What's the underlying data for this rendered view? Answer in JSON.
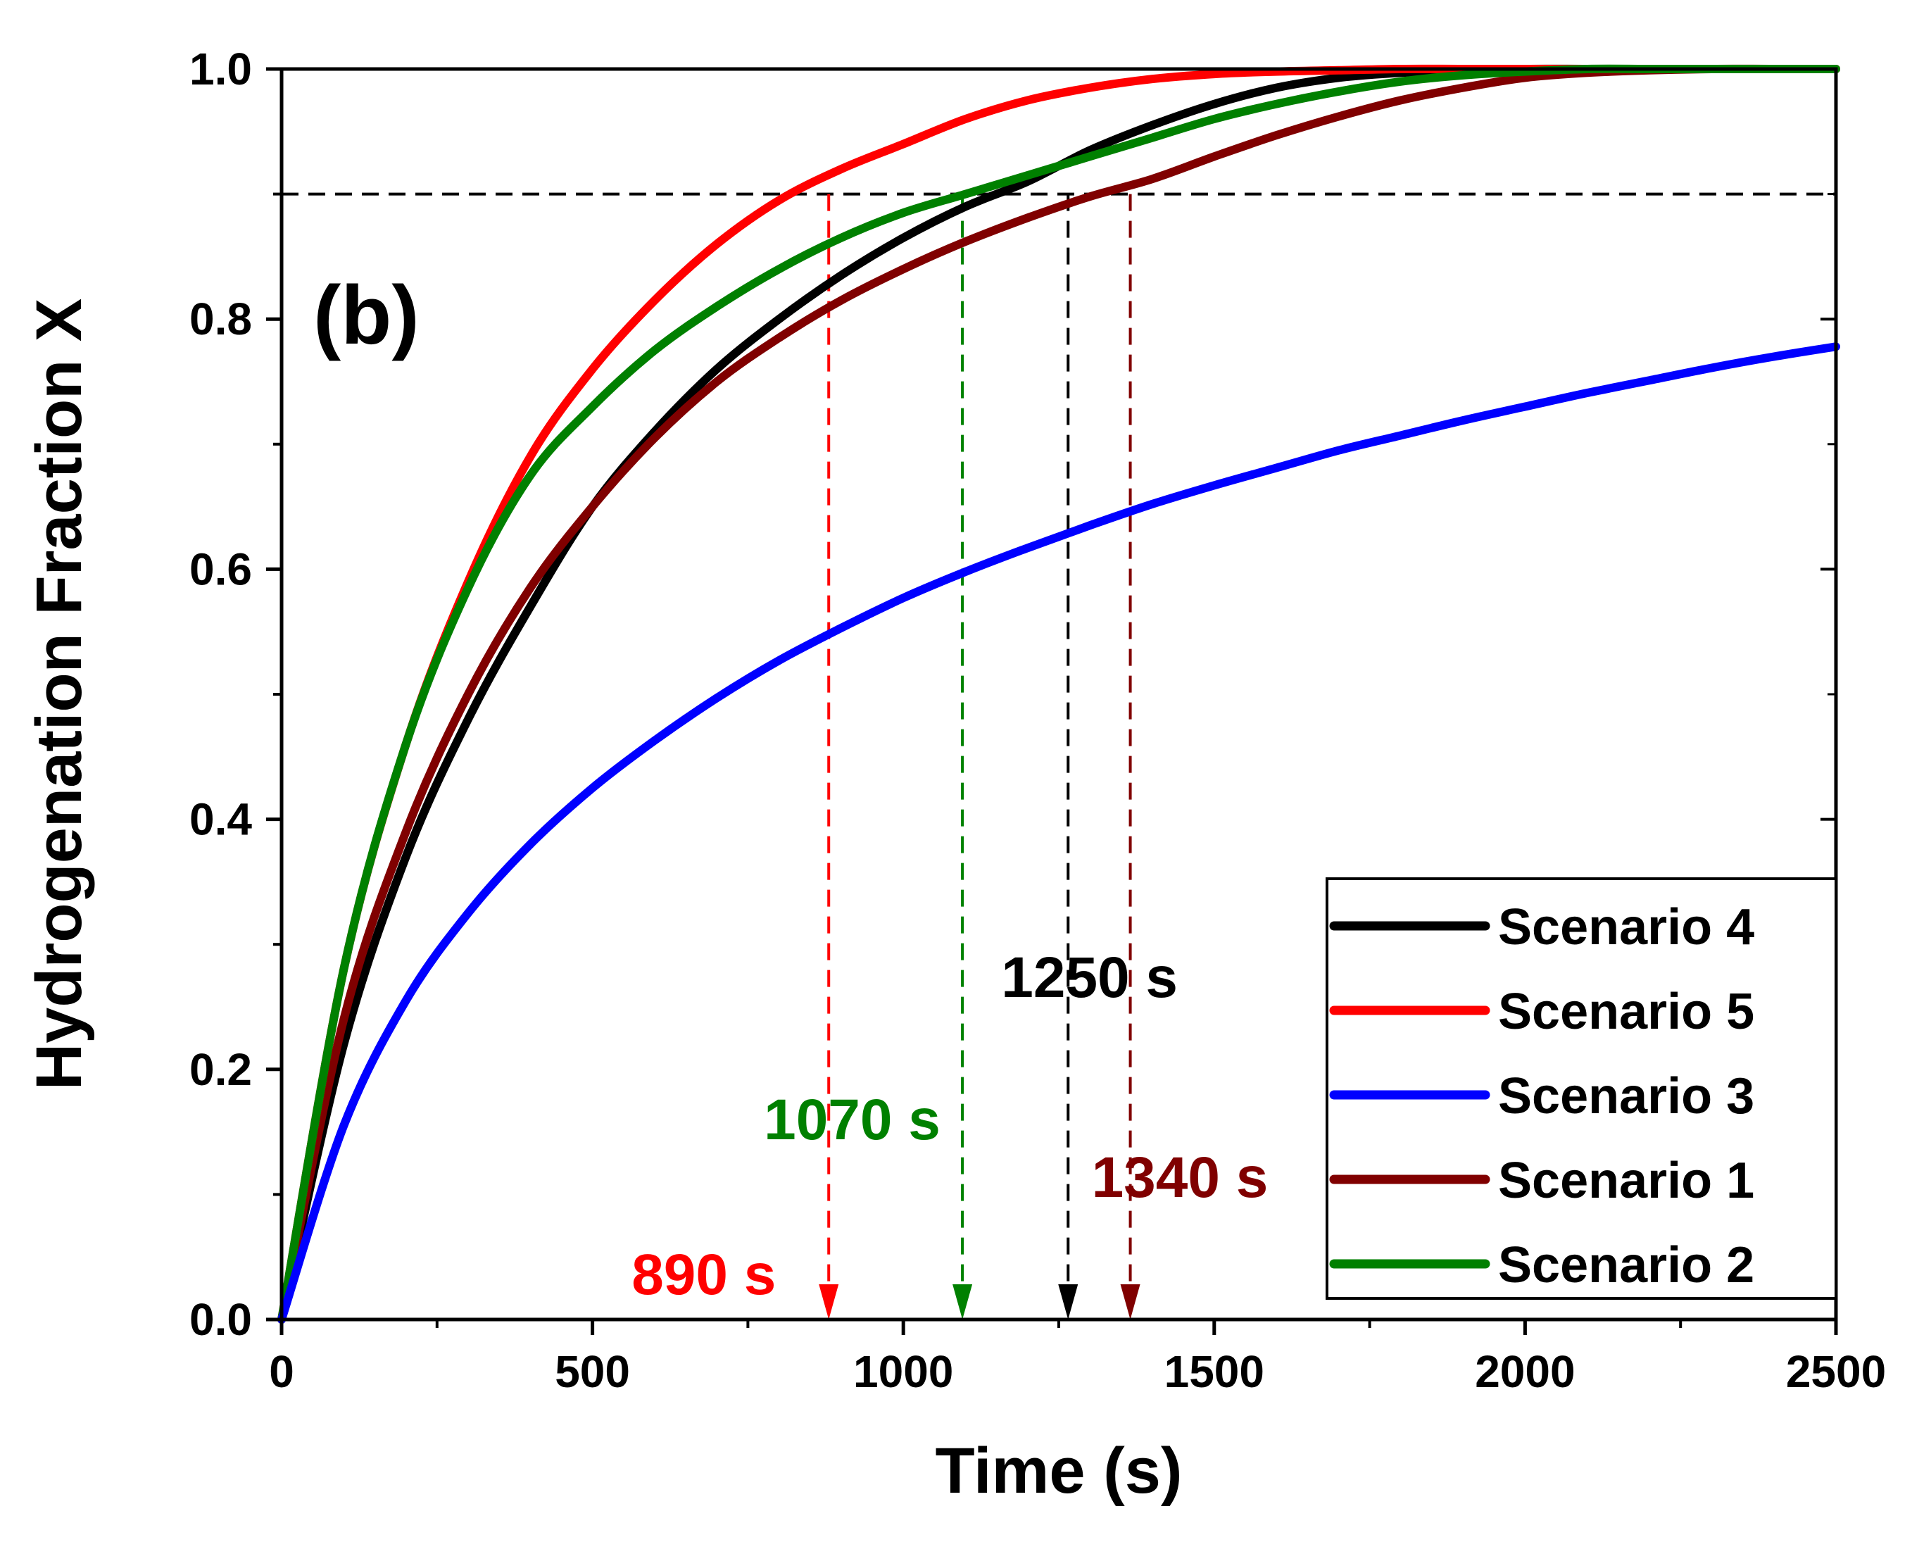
{
  "chart_data": {
    "type": "line",
    "panel_label": "(b)",
    "title": "",
    "xlabel": "Time (s)",
    "ylabel": "Hydrogenation Fraction X",
    "xlim": [
      0,
      2500
    ],
    "ylim": [
      0.0,
      1.0
    ],
    "x_ticks": [
      0,
      500,
      1000,
      1500,
      2000,
      2500
    ],
    "x_tick_labels": [
      "0",
      "500",
      "1000",
      "1500",
      "2000",
      "2500"
    ],
    "y_ticks": [
      0.0,
      0.2,
      0.4,
      0.6,
      0.8,
      1.0
    ],
    "y_tick_labels": [
      "0.0",
      "0.2",
      "0.4",
      "0.6",
      "0.8",
      "1.0"
    ],
    "grid": false,
    "legend_position": "bottom-right",
    "reference_line": {
      "y": 0.9,
      "color": "#000000",
      "style": "dashed"
    },
    "series": [
      {
        "name": "Scenario 4",
        "color": "#000000",
        "x": [
          0,
          100,
          200,
          300,
          400,
          500,
          600,
          700,
          800,
          900,
          1000,
          1100,
          1200,
          1300,
          1400,
          1500,
          1600,
          1700,
          1800,
          1900,
          2000,
          2100,
          2200,
          2300,
          2400,
          2500
        ],
        "y": [
          0.0,
          0.22,
          0.37,
          0.48,
          0.57,
          0.65,
          0.71,
          0.76,
          0.8,
          0.835,
          0.865,
          0.89,
          0.91,
          0.935,
          0.955,
          0.972,
          0.985,
          0.993,
          0.997,
          0.999,
          1.0,
          1.0,
          1.0,
          1.0,
          1.0,
          1.0
        ]
      },
      {
        "name": "Scenario 5",
        "color": "#ff0000",
        "x": [
          0,
          100,
          200,
          300,
          400,
          500,
          600,
          700,
          800,
          900,
          1000,
          1100,
          1200,
          1300,
          1400,
          1500,
          1600,
          1700,
          1800,
          1900,
          2000,
          2100,
          2200,
          2300,
          2400,
          2500
        ],
        "y": [
          0.0,
          0.28,
          0.46,
          0.59,
          0.69,
          0.76,
          0.815,
          0.86,
          0.895,
          0.92,
          0.94,
          0.96,
          0.975,
          0.985,
          0.992,
          0.996,
          0.998,
          0.999,
          1.0,
          1.0,
          1.0,
          1.0,
          1.0,
          1.0,
          1.0,
          1.0
        ]
      },
      {
        "name": "Scenario 3",
        "color": "#0000ff",
        "x": [
          0,
          100,
          200,
          300,
          400,
          500,
          600,
          700,
          800,
          900,
          1000,
          1100,
          1200,
          1300,
          1400,
          1500,
          1600,
          1700,
          1800,
          1900,
          2000,
          2100,
          2200,
          2300,
          2400,
          2500
        ],
        "y": [
          0.0,
          0.155,
          0.255,
          0.325,
          0.38,
          0.425,
          0.463,
          0.497,
          0.527,
          0.553,
          0.577,
          0.598,
          0.617,
          0.635,
          0.652,
          0.667,
          0.681,
          0.695,
          0.707,
          0.719,
          0.73,
          0.741,
          0.751,
          0.761,
          0.77,
          0.778
        ]
      },
      {
        "name": "Scenario 1",
        "color": "#800000",
        "x": [
          0,
          100,
          200,
          300,
          400,
          500,
          600,
          700,
          800,
          900,
          1000,
          1100,
          1200,
          1300,
          1400,
          1500,
          1600,
          1700,
          1800,
          1900,
          2000,
          2100,
          2200,
          2300,
          2400,
          2500
        ],
        "y": [
          0.0,
          0.24,
          0.39,
          0.5,
          0.585,
          0.65,
          0.705,
          0.75,
          0.785,
          0.815,
          0.84,
          0.862,
          0.881,
          0.898,
          0.912,
          0.93,
          0.947,
          0.962,
          0.975,
          0.985,
          0.993,
          0.997,
          0.999,
          1.0,
          1.0,
          1.0
        ]
      },
      {
        "name": "Scenario 2",
        "color": "#008000",
        "x": [
          0,
          100,
          200,
          300,
          400,
          500,
          600,
          700,
          800,
          900,
          1000,
          1100,
          1200,
          1300,
          1400,
          1500,
          1600,
          1700,
          1800,
          1900,
          2000,
          2100,
          2200,
          2300,
          2400,
          2500
        ],
        "y": [
          0.0,
          0.28,
          0.46,
          0.585,
          0.675,
          0.73,
          0.775,
          0.81,
          0.84,
          0.865,
          0.885,
          0.9,
          0.915,
          0.93,
          0.945,
          0.96,
          0.972,
          0.982,
          0.99,
          0.995,
          0.998,
          1.0,
          1.0,
          1.0,
          1.0,
          1.0
        ]
      }
    ],
    "annotations": [
      {
        "text": "890 s",
        "x": 880,
        "color": "#ff0000"
      },
      {
        "text": "1070 s",
        "x": 1095,
        "color": "#008000"
      },
      {
        "text": "1250 s",
        "x": 1265,
        "color": "#000000"
      },
      {
        "text": "1340 s",
        "x": 1365,
        "color": "#800000"
      }
    ]
  }
}
